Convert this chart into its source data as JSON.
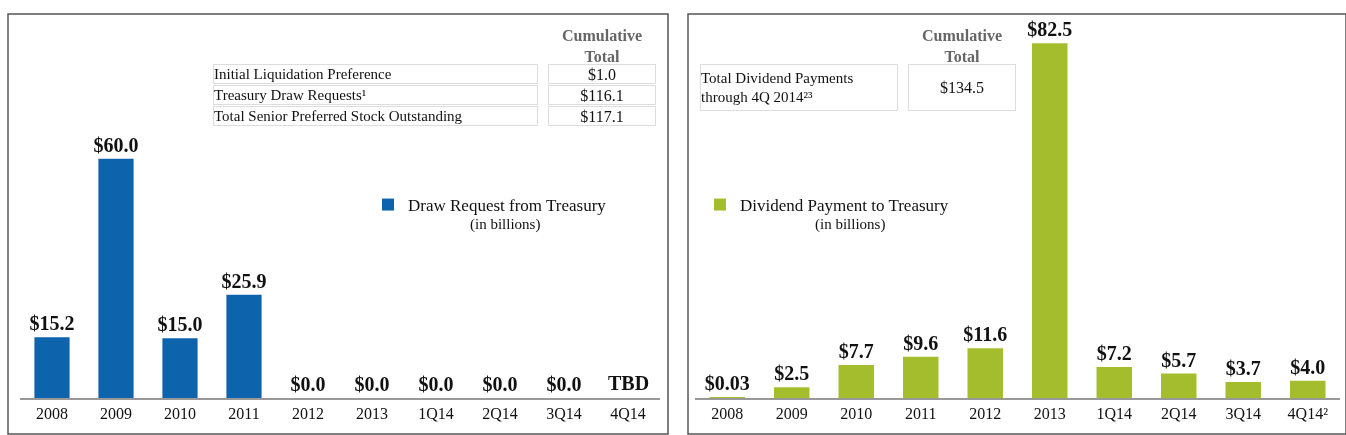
{
  "chart_data": [
    {
      "type": "bar",
      "categories": [
        "2008",
        "2009",
        "2010",
        "2011",
        "2012",
        "2013",
        "1Q14",
        "2Q14",
        "3Q14",
        "4Q14"
      ],
      "series": [
        {
          "name": "Draw Request from Treasury",
          "color": "#0e63ad",
          "values": [
            15.2,
            60.0,
            15.0,
            25.9,
            0.0,
            0.0,
            0.0,
            0.0,
            0.0,
            null
          ],
          "value_labels": [
            "$15.2",
            "$60.0",
            "$15.0",
            "$25.9",
            "$0.0",
            "$0.0",
            "$0.0",
            "$0.0",
            "$0.0",
            "TBD"
          ]
        }
      ],
      "legend": "right",
      "annotations": [
        "(in billions)",
        "Cumulative Total",
        "Initial Liquidation Preference",
        "$1.0",
        "Treasury Draw Requests¹",
        "$116.1",
        "Total Senior Preferred Stock Outstanding",
        "$117.1"
      ]
    },
    {
      "type": "bar",
      "categories": [
        "2008",
        "2009",
        "2010",
        "2011",
        "2012",
        "2013",
        "1Q14",
        "2Q14",
        "3Q14",
        "4Q14²"
      ],
      "series": [
        {
          "name": "Dividend Payment to Treasury",
          "color": "#a4bd2c",
          "values": [
            0.03,
            2.5,
            7.7,
            9.6,
            11.6,
            82.5,
            7.2,
            5.7,
            3.7,
            4.0
          ],
          "value_labels": [
            "$0.03",
            "$2.5",
            "$7.7",
            "$9.6",
            "$11.6",
            "$82.5",
            "$7.2",
            "$5.7",
            "$3.7",
            "$4.0"
          ]
        }
      ],
      "legend": "left",
      "annotations": [
        "(in billions)",
        "Cumulative Total",
        "Total Dividend Payments through 4Q 2014²³",
        "$134.5"
      ]
    }
  ]
}
